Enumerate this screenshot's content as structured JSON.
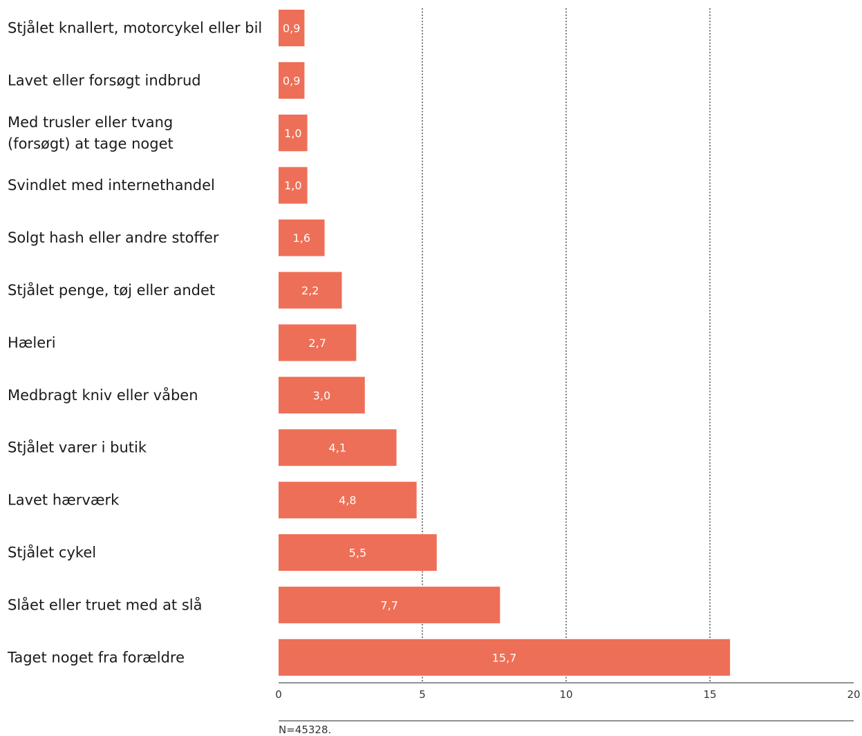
{
  "chart_data": {
    "type": "bar",
    "orientation": "horizontal",
    "categories": [
      [
        "Stjålet knallert, motorcykel eller bil"
      ],
      [
        "Lavet eller forsøgt indbrud"
      ],
      [
        "Med trusler eller tvang",
        "(forsøgt) at tage noget"
      ],
      [
        "Svindlet med internethandel"
      ],
      [
        "Solgt hash eller andre stoffer"
      ],
      [
        "Stjålet penge, tøj eller andet"
      ],
      [
        "Hæleri"
      ],
      [
        "Medbragt kniv eller våben"
      ],
      [
        "Stjålet varer i butik"
      ],
      [
        "Lavet hærværk"
      ],
      [
        "Stjålet cykel"
      ],
      [
        "Slået eller truet med at slå"
      ],
      [
        "Taget noget fra forældre"
      ]
    ],
    "values": [
      0.9,
      0.9,
      1.0,
      1.0,
      1.6,
      2.2,
      2.7,
      3.0,
      4.1,
      4.8,
      5.5,
      7.7,
      15.7
    ],
    "value_labels": [
      "0,9",
      "0,9",
      "1,0",
      "1,0",
      "1,6",
      "2,2",
      "2,7",
      "3,0",
      "4,1",
      "4,8",
      "5,5",
      "7,7",
      "15,7"
    ],
    "xlim": [
      0,
      20
    ],
    "x_ticks": [
      0,
      5,
      10,
      15,
      20
    ],
    "x_tick_labels": [
      "0",
      "5",
      "10",
      "15",
      "20"
    ],
    "gridlines": [
      5,
      10,
      15
    ],
    "grid_style": "dotted",
    "bar_color": "#ee6f57",
    "note": "N=45328."
  }
}
